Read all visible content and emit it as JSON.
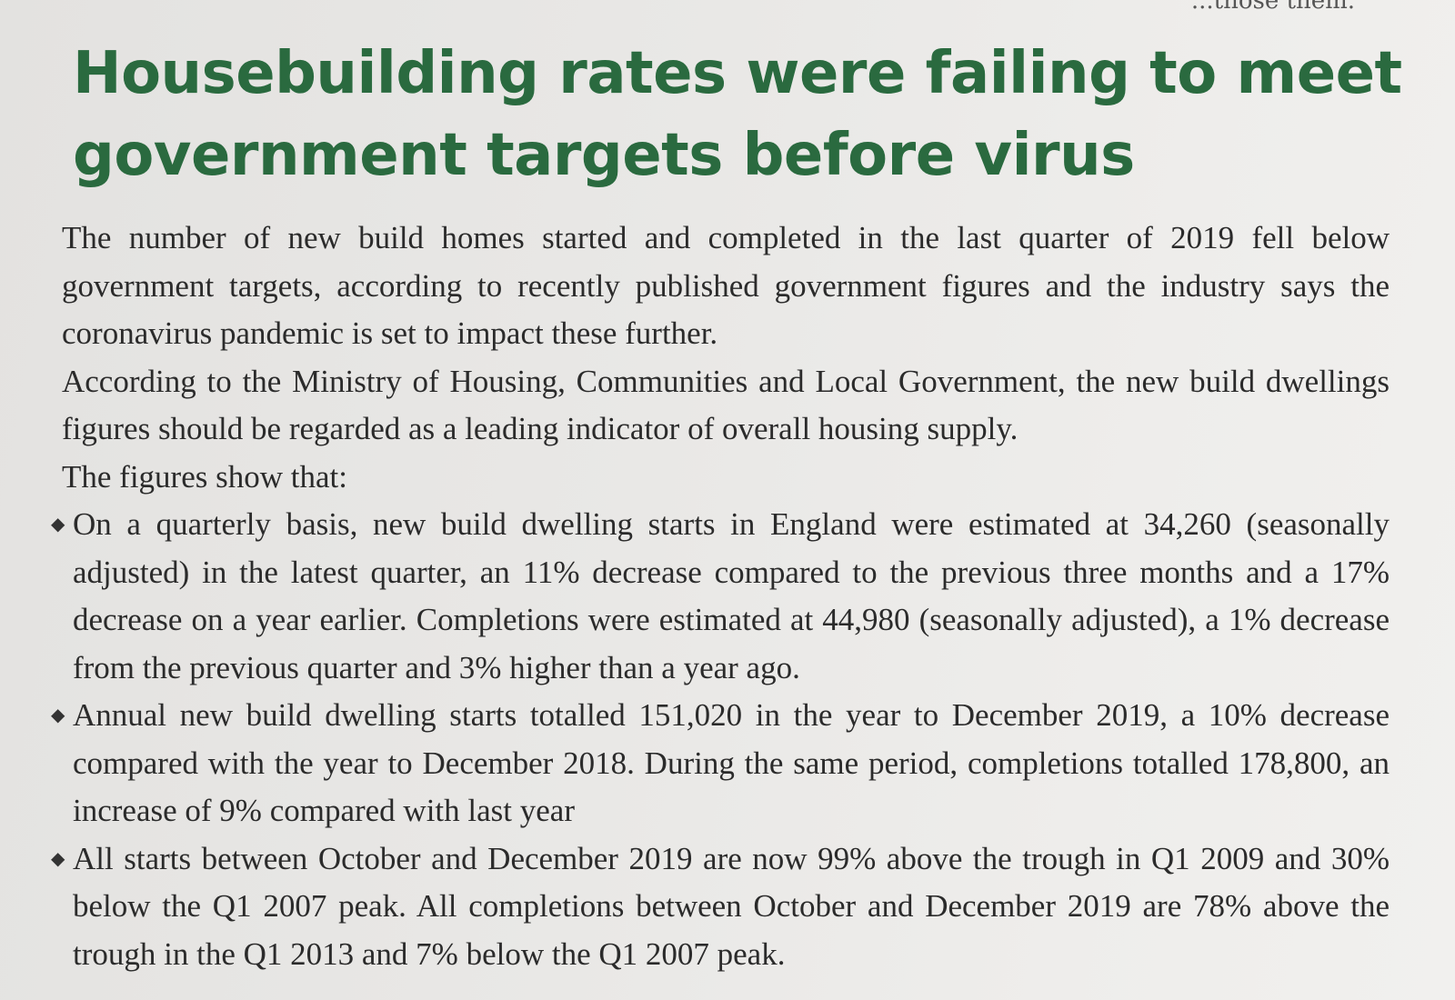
{
  "top_fragment": "...those them.",
  "headline": {
    "line1": "Housebuilding rates were failing to meet",
    "line2": "government targets before virus"
  },
  "paragraphs": [
    "The number of new build homes started and completed in the last quarter of 2019 fell below government targets, according to recently published government figures and the industry says the coronavirus pandemic is set to impact these further.",
    "According to the Ministry of Housing, Communities and Local Government, the new build dwellings figures should be regarded as a leading indicator of overall housing supply.",
    "The figures show that:"
  ],
  "bullet_icon": "◆",
  "bullets": [
    "On a quarterly basis, new build dwelling starts in England were estimated at 34,260 (seasonally adjusted) in the latest quarter, an 11% decrease compared to the previous three months and a 17% decrease on a year earlier. Completions were estimated at 44,980 (seasonally adjusted), a 1% decrease from the previous quarter and 3% higher than a year ago.",
    "Annual new build dwelling starts totalled 151,020 in the year to December 2019, a 10% decrease compared with the year to December 2018. During the same period, completions totalled 178,800, an increase of 9% compared with last year",
    "All starts between October and December 2019 are now 99% above the trough in Q1 2009 and 30% below the Q1 2007 peak. All completions between October and December 2019 are 78% above the trough in the Q1 2013 and 7% below the Q1 2007 peak."
  ],
  "colors": {
    "headline": "#2a6a3f",
    "body_text": "#2b2b2b",
    "page_background": "#e9e8e6"
  }
}
